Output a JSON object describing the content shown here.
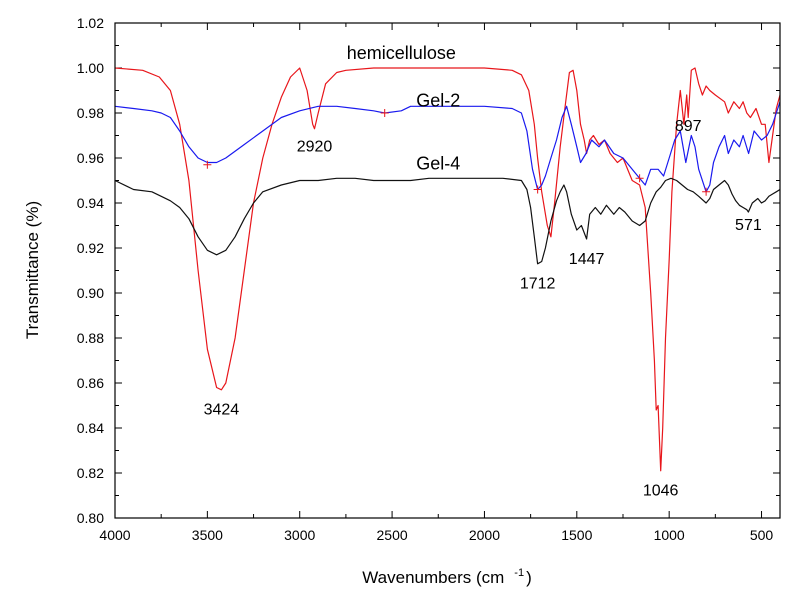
{
  "chart_data": {
    "type": "line",
    "xlabel": "Wavenumbers (cm",
    "xlabel_superscript": "-1",
    "xlabel_suffix": ")",
    "ylabel": "Transmittance (%)",
    "xlim": [
      4000,
      400
    ],
    "ylim": [
      0.8,
      1.02
    ],
    "x_reversed": true,
    "grid": false,
    "x_ticks": [
      4000,
      3500,
      3000,
      2500,
      2000,
      1500,
      1000,
      500
    ],
    "x_tick_labels": [
      "4000",
      "3500",
      "3000",
      "2500",
      "2000",
      "1500",
      "1000",
      "500"
    ],
    "y_ticks": [
      0.8,
      0.82,
      0.84,
      0.86,
      0.88,
      0.9,
      0.92,
      0.94,
      0.96,
      0.98,
      1.0,
      1.02
    ],
    "y_tick_labels": [
      "0.80",
      "0.82",
      "0.84",
      "0.86",
      "0.88",
      "0.90",
      "0.92",
      "0.94",
      "0.96",
      "0.98",
      "1.00",
      "1.02"
    ],
    "series": [
      {
        "name": "hemicellulose",
        "color": "#e8161b",
        "points": [
          [
            4000,
            1.0
          ],
          [
            3850,
            0.999
          ],
          [
            3760,
            0.996
          ],
          [
            3700,
            0.99
          ],
          [
            3650,
            0.975
          ],
          [
            3600,
            0.95
          ],
          [
            3550,
            0.91
          ],
          [
            3500,
            0.875
          ],
          [
            3450,
            0.858
          ],
          [
            3424,
            0.857
          ],
          [
            3400,
            0.86
          ],
          [
            3350,
            0.88
          ],
          [
            3300,
            0.91
          ],
          [
            3250,
            0.94
          ],
          [
            3200,
            0.96
          ],
          [
            3150,
            0.975
          ],
          [
            3100,
            0.987
          ],
          [
            3050,
            0.996
          ],
          [
            3000,
            1.0
          ],
          [
            2960,
            0.99
          ],
          [
            2930,
            0.975
          ],
          [
            2920,
            0.973
          ],
          [
            2900,
            0.98
          ],
          [
            2860,
            0.993
          ],
          [
            2800,
            0.998
          ],
          [
            2750,
            0.999
          ],
          [
            2600,
            1.0
          ],
          [
            2400,
            1.0
          ],
          [
            2200,
            1.0
          ],
          [
            2000,
            1.0
          ],
          [
            1850,
            0.999
          ],
          [
            1800,
            0.997
          ],
          [
            1760,
            0.99
          ],
          [
            1730,
            0.975
          ],
          [
            1712,
            0.96
          ],
          [
            1690,
            0.945
          ],
          [
            1660,
            0.93
          ],
          [
            1640,
            0.925
          ],
          [
            1620,
            0.94
          ],
          [
            1590,
            0.965
          ],
          [
            1560,
            0.985
          ],
          [
            1540,
            0.998
          ],
          [
            1520,
            0.999
          ],
          [
            1500,
            0.99
          ],
          [
            1480,
            0.975
          ],
          [
            1460,
            0.968
          ],
          [
            1447,
            0.962
          ],
          [
            1430,
            0.968
          ],
          [
            1410,
            0.97
          ],
          [
            1380,
            0.966
          ],
          [
            1350,
            0.968
          ],
          [
            1320,
            0.962
          ],
          [
            1280,
            0.958
          ],
          [
            1250,
            0.96
          ],
          [
            1200,
            0.95
          ],
          [
            1160,
            0.948
          ],
          [
            1130,
            0.938
          ],
          [
            1100,
            0.9
          ],
          [
            1080,
            0.87
          ],
          [
            1070,
            0.848
          ],
          [
            1060,
            0.85
          ],
          [
            1046,
            0.821
          ],
          [
            1035,
            0.84
          ],
          [
            1020,
            0.88
          ],
          [
            1000,
            0.915
          ],
          [
            985,
            0.945
          ],
          [
            960,
            0.975
          ],
          [
            940,
            0.99
          ],
          [
            920,
            0.975
          ],
          [
            905,
            0.988
          ],
          [
            897,
            0.978
          ],
          [
            880,
            0.999
          ],
          [
            860,
            1.0
          ],
          [
            840,
            0.993
          ],
          [
            820,
            0.988
          ],
          [
            800,
            0.992
          ],
          [
            780,
            0.99
          ],
          [
            750,
            0.988
          ],
          [
            700,
            0.985
          ],
          [
            680,
            0.98
          ],
          [
            650,
            0.985
          ],
          [
            620,
            0.982
          ],
          [
            600,
            0.985
          ],
          [
            580,
            0.98
          ],
          [
            560,
            0.978
          ],
          [
            530,
            0.982
          ],
          [
            500,
            0.975
          ],
          [
            480,
            0.975
          ],
          [
            460,
            0.958
          ],
          [
            440,
            0.97
          ],
          [
            420,
            0.982
          ],
          [
            400,
            0.988
          ]
        ]
      },
      {
        "name": "Gel-2",
        "color": "#1a1aef",
        "points": [
          [
            4000,
            0.983
          ],
          [
            3900,
            0.982
          ],
          [
            3800,
            0.981
          ],
          [
            3750,
            0.98
          ],
          [
            3700,
            0.978
          ],
          [
            3650,
            0.972
          ],
          [
            3600,
            0.965
          ],
          [
            3550,
            0.96
          ],
          [
            3500,
            0.958
          ],
          [
            3450,
            0.958
          ],
          [
            3400,
            0.96
          ],
          [
            3300,
            0.966
          ],
          [
            3200,
            0.972
          ],
          [
            3100,
            0.978
          ],
          [
            3000,
            0.981
          ],
          [
            2900,
            0.983
          ],
          [
            2800,
            0.983
          ],
          [
            2700,
            0.982
          ],
          [
            2600,
            0.981
          ],
          [
            2540,
            0.98
          ],
          [
            2450,
            0.981
          ],
          [
            2400,
            0.983
          ],
          [
            2200,
            0.983
          ],
          [
            2000,
            0.983
          ],
          [
            1850,
            0.982
          ],
          [
            1800,
            0.98
          ],
          [
            1770,
            0.972
          ],
          [
            1740,
            0.955
          ],
          [
            1712,
            0.946
          ],
          [
            1690,
            0.948
          ],
          [
            1670,
            0.952
          ],
          [
            1640,
            0.96
          ],
          [
            1610,
            0.968
          ],
          [
            1580,
            0.978
          ],
          [
            1555,
            0.983
          ],
          [
            1530,
            0.975
          ],
          [
            1500,
            0.965
          ],
          [
            1480,
            0.958
          ],
          [
            1450,
            0.962
          ],
          [
            1420,
            0.968
          ],
          [
            1380,
            0.965
          ],
          [
            1350,
            0.968
          ],
          [
            1300,
            0.962
          ],
          [
            1250,
            0.96
          ],
          [
            1200,
            0.955
          ],
          [
            1160,
            0.951
          ],
          [
            1130,
            0.948
          ],
          [
            1100,
            0.955
          ],
          [
            1060,
            0.955
          ],
          [
            1030,
            0.952
          ],
          [
            1000,
            0.96
          ],
          [
            970,
            0.968
          ],
          [
            940,
            0.972
          ],
          [
            910,
            0.958
          ],
          [
            880,
            0.97
          ],
          [
            860,
            0.965
          ],
          [
            840,
            0.955
          ],
          [
            800,
            0.945
          ],
          [
            780,
            0.948
          ],
          [
            760,
            0.958
          ],
          [
            730,
            0.965
          ],
          [
            700,
            0.97
          ],
          [
            680,
            0.962
          ],
          [
            650,
            0.968
          ],
          [
            620,
            0.965
          ],
          [
            600,
            0.97
          ],
          [
            570,
            0.962
          ],
          [
            540,
            0.972
          ],
          [
            500,
            0.968
          ],
          [
            470,
            0.97
          ],
          [
            440,
            0.975
          ],
          [
            420,
            0.98
          ],
          [
            400,
            0.985
          ]
        ]
      },
      {
        "name": "Gel-4",
        "color": "#111111",
        "points": [
          [
            4000,
            0.95
          ],
          [
            3900,
            0.946
          ],
          [
            3800,
            0.945
          ],
          [
            3750,
            0.943
          ],
          [
            3700,
            0.941
          ],
          [
            3650,
            0.938
          ],
          [
            3600,
            0.933
          ],
          [
            3550,
            0.925
          ],
          [
            3500,
            0.919
          ],
          [
            3450,
            0.917
          ],
          [
            3400,
            0.919
          ],
          [
            3350,
            0.925
          ],
          [
            3300,
            0.933
          ],
          [
            3250,
            0.94
          ],
          [
            3200,
            0.945
          ],
          [
            3100,
            0.948
          ],
          [
            3000,
            0.95
          ],
          [
            2900,
            0.95
          ],
          [
            2800,
            0.951
          ],
          [
            2700,
            0.951
          ],
          [
            2600,
            0.95
          ],
          [
            2500,
            0.95
          ],
          [
            2400,
            0.95
          ],
          [
            2300,
            0.951
          ],
          [
            2200,
            0.951
          ],
          [
            2100,
            0.951
          ],
          [
            2000,
            0.951
          ],
          [
            1900,
            0.951
          ],
          [
            1800,
            0.95
          ],
          [
            1770,
            0.946
          ],
          [
            1750,
            0.938
          ],
          [
            1730,
            0.925
          ],
          [
            1712,
            0.913
          ],
          [
            1690,
            0.914
          ],
          [
            1670,
            0.92
          ],
          [
            1640,
            0.932
          ],
          [
            1610,
            0.941
          ],
          [
            1590,
            0.945
          ],
          [
            1570,
            0.948
          ],
          [
            1555,
            0.945
          ],
          [
            1530,
            0.935
          ],
          [
            1500,
            0.928
          ],
          [
            1475,
            0.93
          ],
          [
            1447,
            0.924
          ],
          [
            1430,
            0.935
          ],
          [
            1400,
            0.938
          ],
          [
            1370,
            0.935
          ],
          [
            1340,
            0.939
          ],
          [
            1300,
            0.935
          ],
          [
            1270,
            0.938
          ],
          [
            1240,
            0.936
          ],
          [
            1200,
            0.932
          ],
          [
            1160,
            0.93
          ],
          [
            1130,
            0.932
          ],
          [
            1100,
            0.94
          ],
          [
            1070,
            0.945
          ],
          [
            1046,
            0.947
          ],
          [
            1020,
            0.95
          ],
          [
            990,
            0.951
          ],
          [
            960,
            0.95
          ],
          [
            930,
            0.948
          ],
          [
            900,
            0.946
          ],
          [
            870,
            0.945
          ],
          [
            840,
            0.943
          ],
          [
            800,
            0.94
          ],
          [
            780,
            0.942
          ],
          [
            760,
            0.946
          ],
          [
            730,
            0.948
          ],
          [
            700,
            0.95
          ],
          [
            680,
            0.948
          ],
          [
            660,
            0.944
          ],
          [
            640,
            0.941
          ],
          [
            620,
            0.939
          ],
          [
            600,
            0.938
          ],
          [
            580,
            0.937
          ],
          [
            571,
            0.936
          ],
          [
            550,
            0.94
          ],
          [
            520,
            0.942
          ],
          [
            500,
            0.94
          ],
          [
            480,
            0.941
          ],
          [
            460,
            0.943
          ],
          [
            440,
            0.944
          ],
          [
            420,
            0.945
          ],
          [
            400,
            0.946
          ]
        ]
      }
    ],
    "markers": [
      {
        "series": "hemicellulose",
        "x": 3500,
        "y": 0.957,
        "color": "#e8161b"
      },
      {
        "series": "hemicellulose",
        "x": 2540,
        "y": 0.98,
        "color": "#e8161b"
      },
      {
        "series": "hemicellulose",
        "x": 1712,
        "y": 0.946,
        "color": "#e8161b"
      },
      {
        "series": "hemicellulose",
        "x": 1160,
        "y": 0.951,
        "color": "#e8161b"
      },
      {
        "series": "hemicellulose",
        "x": 800,
        "y": 0.945,
        "color": "#e8161b"
      }
    ],
    "series_labels": [
      {
        "text": "hemicellulose",
        "x": 2450,
        "y": 1.004
      },
      {
        "text": "Gel-2",
        "x": 2250,
        "y": 0.983
      },
      {
        "text": "Gel-4",
        "x": 2250,
        "y": 0.955
      }
    ],
    "annotations": [
      {
        "text": "3424",
        "x": 3424,
        "y": 0.846
      },
      {
        "text": "2920",
        "x": 2920,
        "y": 0.963
      },
      {
        "text": "1712",
        "x": 1712,
        "y": 0.902
      },
      {
        "text": "1447",
        "x": 1447,
        "y": 0.913
      },
      {
        "text": "1046",
        "x": 1046,
        "y": 0.81
      },
      {
        "text": "897",
        "x": 897,
        "y": 0.972
      },
      {
        "text": "571",
        "x": 571,
        "y": 0.928
      }
    ]
  }
}
